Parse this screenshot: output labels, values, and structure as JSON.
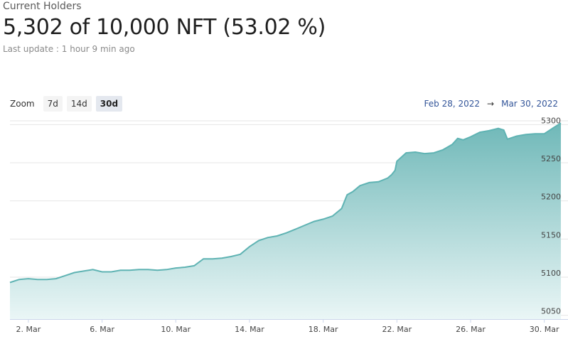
{
  "header": {
    "label": "Current Holders",
    "headline": "5,302 of 10,000 NFT (53.02 %)",
    "last_update": "Last update : 1 hour 9 min ago"
  },
  "zoom": {
    "label": "Zoom",
    "options": [
      "7d",
      "14d",
      "30d"
    ],
    "selected": "30d"
  },
  "range": {
    "from": "Feb 28, 2022",
    "arrow": "→",
    "to": "Mar 30, 2022"
  },
  "colors": {
    "line": "#5fb3b3",
    "fill_top": "#6fb8b8",
    "fill_bottom": "#eaf6f6",
    "link": "#335599"
  },
  "chart_data": {
    "type": "area",
    "x_ticks": [
      "2. Mar",
      "6. Mar",
      "10. Mar",
      "14. Mar",
      "18. Mar",
      "22. Mar",
      "26. Mar",
      "30. Mar"
    ],
    "y_ticks": [
      5050,
      5100,
      5150,
      5200,
      5250,
      5300
    ],
    "ylim": [
      5045,
      5305
    ],
    "xlim": [
      1,
      30.9
    ],
    "grid": true,
    "series": [
      {
        "x": [
          1,
          1.5,
          2,
          2.5,
          3,
          3.5,
          4,
          4.5,
          5,
          5.5,
          6,
          6.5,
          7,
          7.5,
          8,
          8.5,
          9,
          9.5,
          10,
          10.5,
          11,
          11.5,
          12,
          12.5,
          13,
          13.5,
          14,
          14.5,
          15,
          15.5,
          16,
          16.5,
          17,
          17.5,
          18,
          18.5,
          19,
          19.3,
          19.6,
          20,
          20.5,
          21,
          21.5,
          21.7,
          21.9,
          22,
          22.5,
          23,
          23.5,
          24,
          24.5,
          25,
          25.3,
          25.6,
          26,
          26.5,
          27,
          27.5,
          27.8,
          28,
          28.5,
          29,
          29.5,
          30,
          30.5,
          30.9
        ],
        "y": [
          5093,
          5097,
          5098,
          5097,
          5097,
          5098,
          5102,
          5106,
          5108,
          5110,
          5107,
          5107,
          5109,
          5109,
          5110,
          5110,
          5109,
          5110,
          5112,
          5113,
          5115,
          5124,
          5124,
          5125,
          5127,
          5130,
          5140,
          5148,
          5152,
          5154,
          5158,
          5163,
          5168,
          5173,
          5176,
          5180,
          5190,
          5208,
          5212,
          5220,
          5224,
          5225,
          5230,
          5234,
          5240,
          5252,
          5263,
          5264,
          5262,
          5263,
          5267,
          5274,
          5282,
          5280,
          5284,
          5290,
          5292,
          5295,
          5293,
          5281,
          5285,
          5287,
          5288,
          5288,
          5296,
          5302
        ]
      }
    ]
  }
}
